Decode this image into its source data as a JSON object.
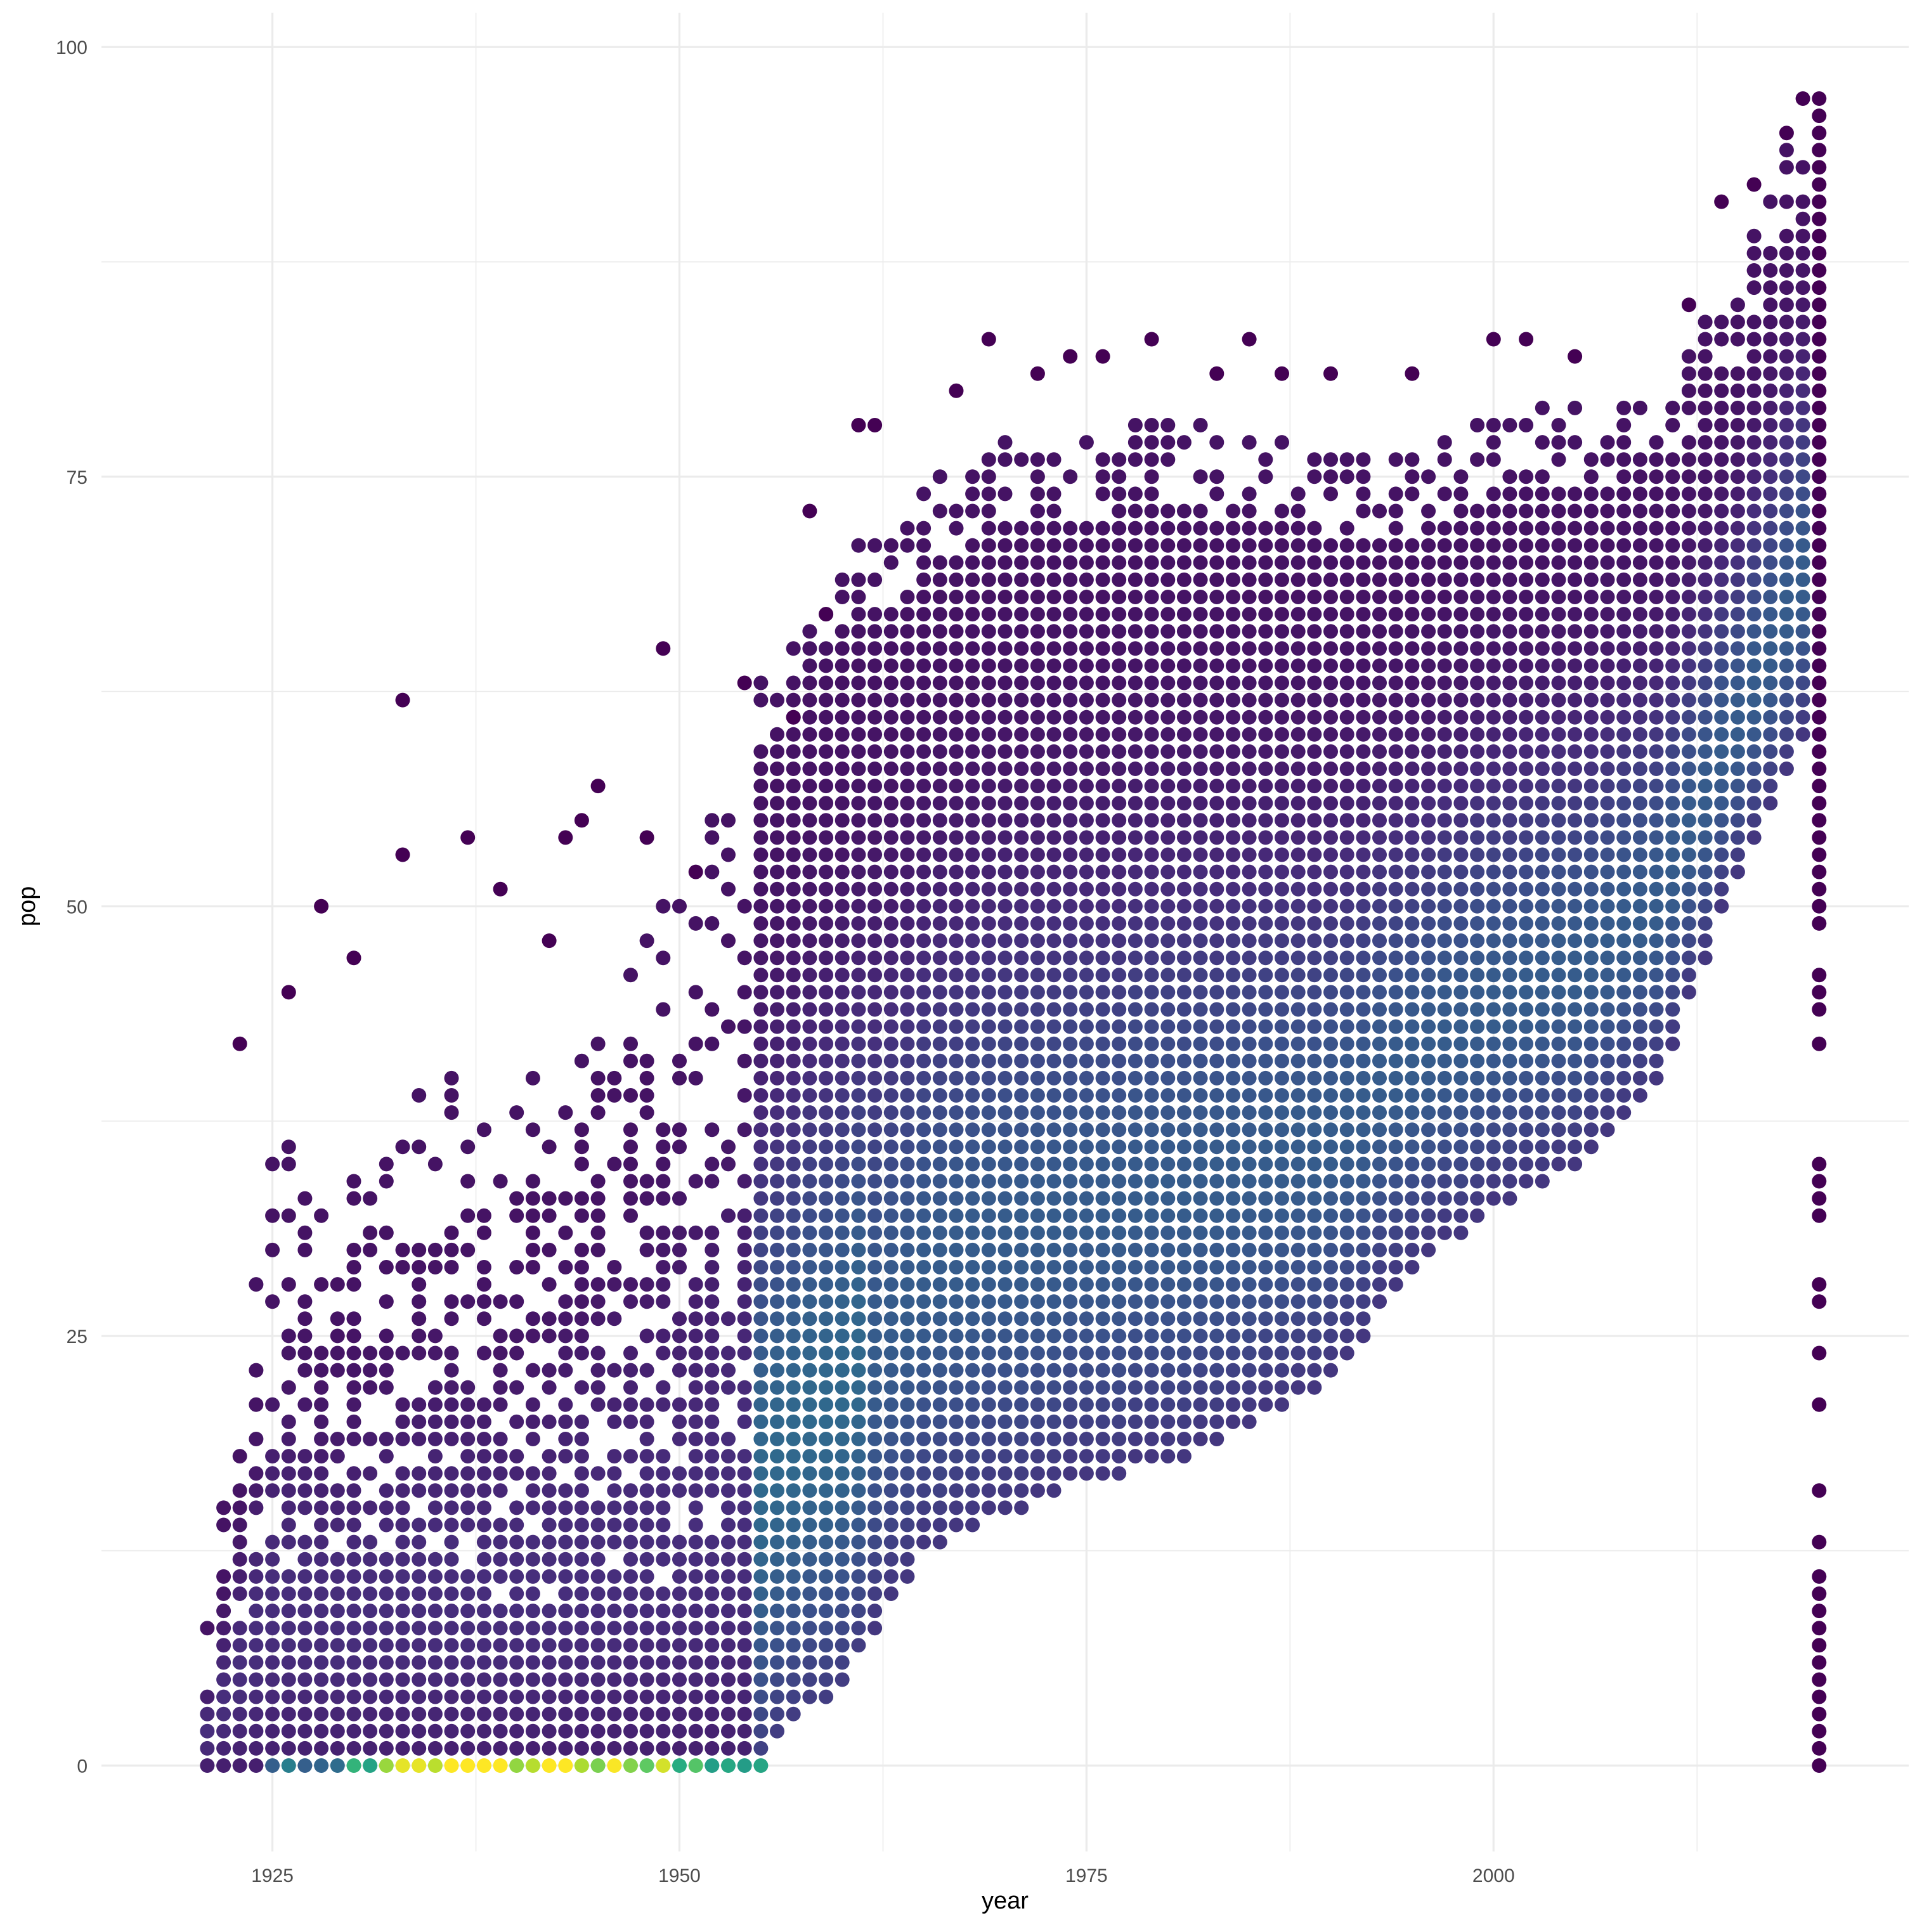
{
  "chart_data": {
    "type": "scatter",
    "title": "",
    "xlabel": "year",
    "ylabel": "pop",
    "xlim": [
      1914.5,
      2025.5
    ],
    "ylim": [
      -5,
      102
    ],
    "x_ticks": [
      1925,
      1950,
      1975,
      2000
    ],
    "x_tick_labels": [
      "1925",
      "1950",
      "1975",
      "2000"
    ],
    "x_minor_ticks": [
      1937.5,
      1962.5,
      1987.5,
      2012.5
    ],
    "y_ticks": [
      0,
      25,
      50,
      75,
      100
    ],
    "y_tick_labels": [
      "0",
      "25",
      "50",
      "75",
      "100"
    ],
    "y_minor_ticks": [
      12.5,
      37.5,
      62.5,
      87.5
    ],
    "grid": true,
    "theme": "minimal",
    "colormap": "viridis",
    "colors": {
      "low": "#440154",
      "mid_low": "#3b528b",
      "mid": "#21918c",
      "mid_high": "#5ec962",
      "high": "#fde725",
      "grid": "#ebebeb",
      "tick_text": "#4d4d4d"
    },
    "point_grid": {
      "x_step": 1,
      "y_step": 1
    },
    "series": [
      {
        "x_range": [
          1921,
          2020
        ],
        "lower_pop_by_year": [
          [
            1921,
            0
          ],
          [
            1930,
            0
          ],
          [
            1940,
            0
          ],
          [
            1950,
            0
          ],
          [
            1955,
            0
          ],
          [
            1957,
            3
          ],
          [
            1960,
            5
          ],
          [
            1965,
            13
          ],
          [
            1970,
            15
          ],
          [
            1975,
            17
          ],
          [
            1980,
            18
          ],
          [
            1985,
            20
          ],
          [
            1990,
            23
          ],
          [
            1995,
            29
          ],
          [
            2000,
            33
          ],
          [
            2005,
            35
          ],
          [
            2010,
            40
          ],
          [
            2015,
            52
          ],
          [
            2019,
            60
          ]
        ],
        "upper_pop_by_year": [
          [
            1921,
            8
          ],
          [
            1925,
            36
          ],
          [
            1930,
            35
          ],
          [
            1935,
            40
          ],
          [
            1940,
            39
          ],
          [
            1945,
            45
          ],
          [
            1950,
            52
          ],
          [
            1955,
            64
          ],
          [
            1960,
            70
          ],
          [
            1965,
            74
          ],
          [
            1970,
            77
          ],
          [
            1975,
            77
          ],
          [
            1980,
            78
          ],
          [
            1985,
            77
          ],
          [
            1990,
            76
          ],
          [
            1995,
            76
          ],
          [
            2000,
            78
          ],
          [
            2005,
            79
          ],
          [
            2010,
            80
          ],
          [
            2015,
            86
          ],
          [
            2019,
            96
          ]
        ],
        "outliers": [
          [
            1923,
            42
          ],
          [
            1926,
            45
          ],
          [
            1928,
            50
          ],
          [
            1930,
            47
          ],
          [
            1933,
            62
          ],
          [
            1933,
            53
          ],
          [
            1937,
            54
          ],
          [
            1939,
            51
          ],
          [
            1942,
            48
          ],
          [
            1943,
            54
          ],
          [
            1944,
            55
          ],
          [
            1945,
            57
          ],
          [
            1948,
            54
          ],
          [
            1949,
            65
          ],
          [
            1951,
            52
          ],
          [
            1954,
            63
          ],
          [
            1957,
            61
          ],
          [
            1958,
            73
          ],
          [
            1959,
            67
          ],
          [
            1961,
            78
          ],
          [
            1962,
            78
          ],
          [
            1967,
            80
          ],
          [
            1969,
            83
          ],
          [
            1972,
            81
          ],
          [
            1974,
            82
          ],
          [
            1976,
            82
          ],
          [
            1979,
            83
          ],
          [
            1983,
            81
          ],
          [
            1985,
            83
          ],
          [
            1987,
            81
          ],
          [
            1990,
            81
          ],
          [
            1995,
            81
          ],
          [
            2000,
            83
          ],
          [
            2002,
            83
          ],
          [
            2005,
            82
          ],
          [
            2012,
            85
          ],
          [
            2014,
            91
          ],
          [
            2016,
            92
          ],
          [
            2018,
            95
          ],
          [
            2019,
            97
          ]
        ],
        "late_column": {
          "year": 2020,
          "pops": [
            0,
            1,
            2,
            3,
            4,
            5,
            6,
            7,
            8,
            9,
            10,
            11,
            13,
            16,
            21,
            24,
            27,
            28,
            32,
            33,
            34,
            35,
            42,
            44,
            45,
            46,
            49,
            50,
            51,
            52,
            53,
            54,
            55,
            56,
            57,
            58,
            59,
            60,
            61,
            62,
            63,
            64,
            65,
            66,
            67,
            68,
            69,
            70,
            71,
            72,
            73,
            74,
            75,
            76,
            77,
            78,
            79,
            80,
            81,
            82,
            83,
            84,
            85,
            86,
            87,
            88,
            89,
            90,
            91,
            92,
            93,
            94,
            95,
            96,
            97
          ]
        },
        "density_peaks": [
          {
            "year_range": [
              1925,
              1955
            ],
            "pop": 0,
            "level": "high"
          },
          {
            "year_range": [
              1955,
              1962
            ],
            "pop_range": [
              2,
              15
            ],
            "level": "mid_low"
          },
          {
            "year_range": [
              1962,
              1985
            ],
            "pop_range": [
              15,
              32
            ],
            "level": "mid_low"
          },
          {
            "year_range": [
              1985,
              2019
            ],
            "pop_range": [
              32,
              64
            ],
            "level": "mid_low"
          }
        ]
      }
    ]
  }
}
